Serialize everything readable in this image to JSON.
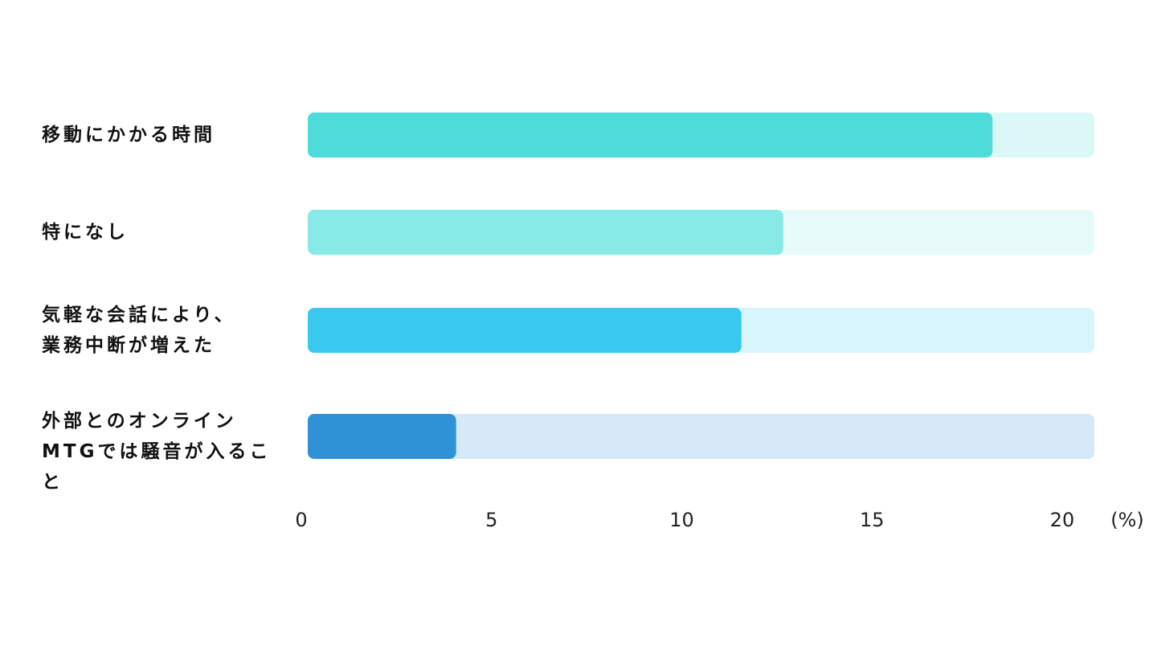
{
  "chart_data": {
    "type": "bar",
    "orientation": "horizontal",
    "categories": [
      "移動にかかる時間",
      "特になし",
      "気軽な会話により、\n業務中断が増えた",
      "外部とのオンラインMTGでは騒音が入ること"
    ],
    "values": [
      18,
      12.5,
      11.4,
      3.9
    ],
    "colors": [
      "#4ddcd9",
      "#88eae7",
      "#3ac9ee",
      "#2f91d6"
    ],
    "xlim": [
      0,
      20
    ],
    "xticks": [
      0,
      5,
      10,
      15,
      20
    ],
    "x_label": "(%)"
  }
}
